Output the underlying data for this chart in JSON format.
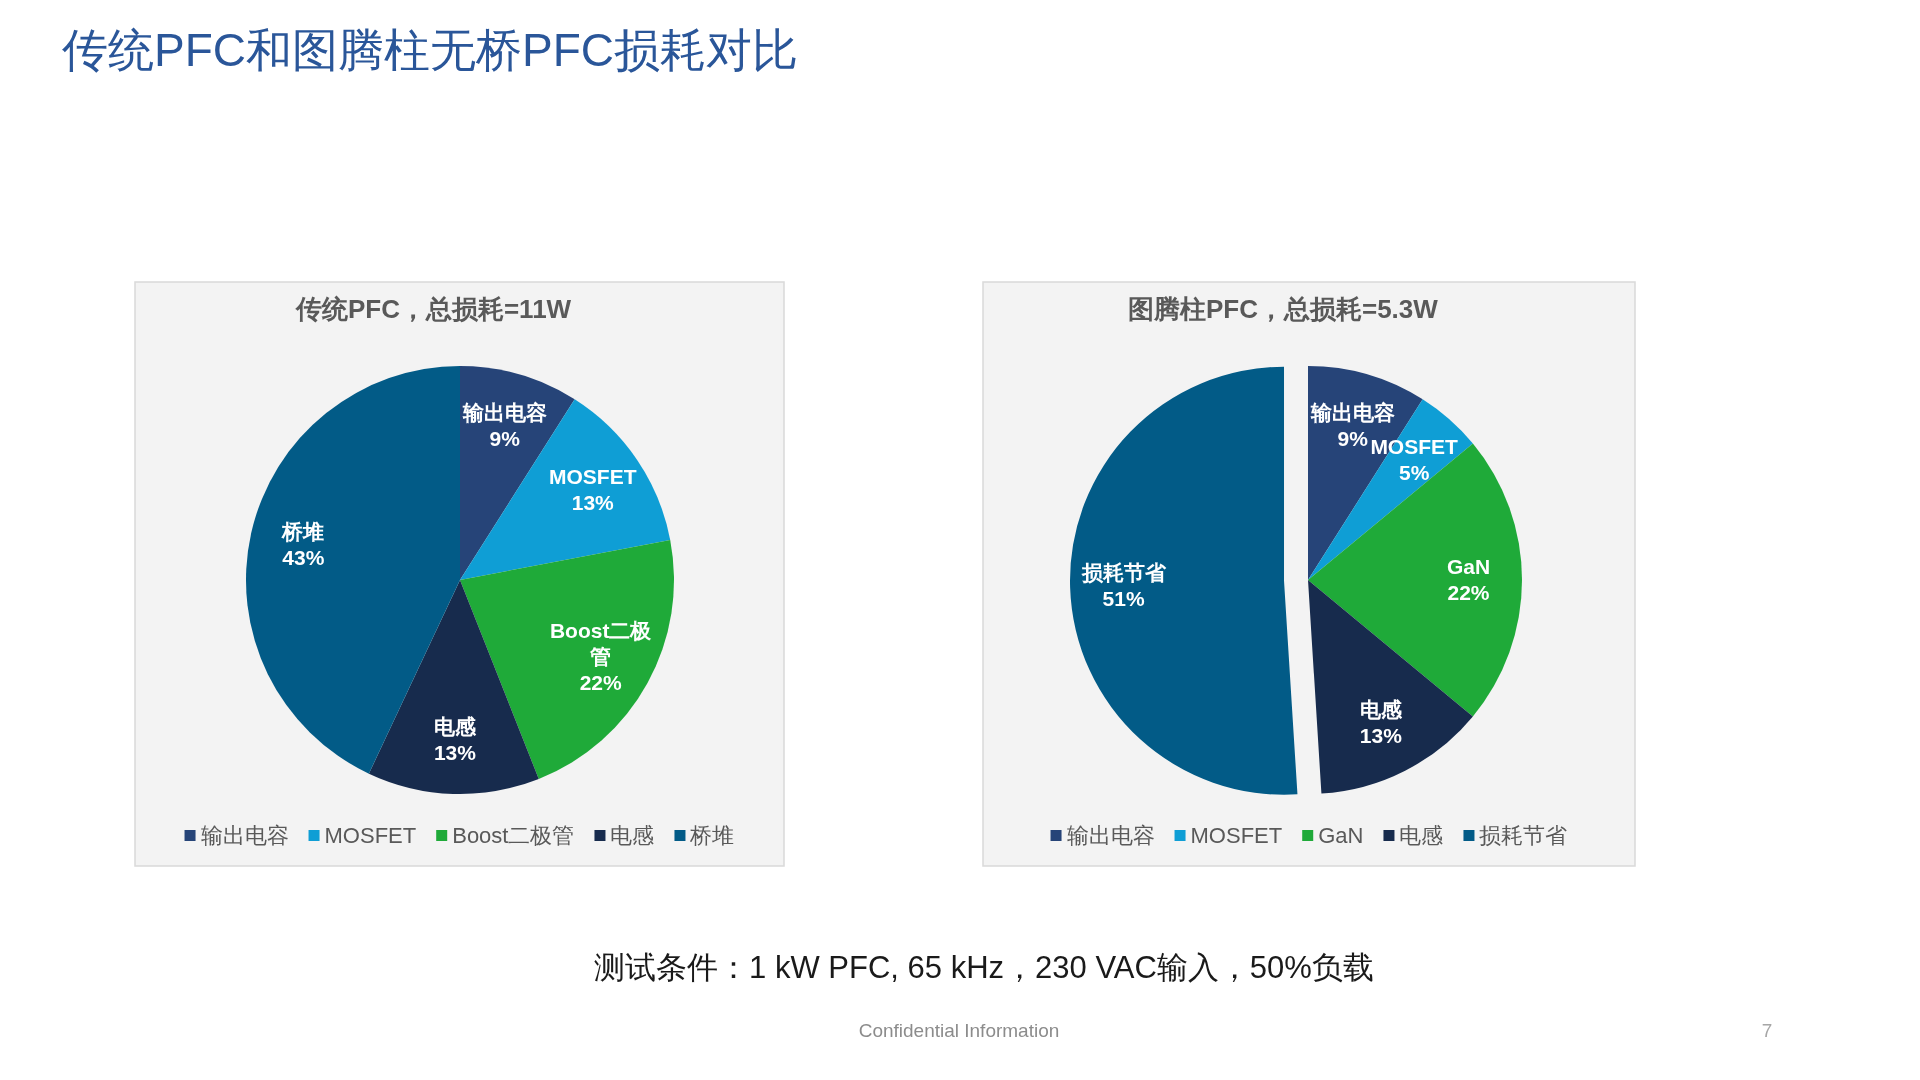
{
  "chart_data": [
    {
      "type": "other",
      "title": "传统PFC和图腾柱无桥PFC损耗对比"
    },
    {
      "type": "pie",
      "title": "传统PFC，总损耗=11W",
      "categories": [
        "输出电容",
        "MOSFET",
        "Boost二极管",
        "电感",
        "桥堆"
      ],
      "values": [
        9,
        13,
        22,
        13,
        43
      ],
      "value_labels": [
        "9%",
        "13%",
        "22%",
        "13%",
        "43%"
      ],
      "colors": [
        "#264478",
        "#0f9ed5",
        "#1faa39",
        "#172b4d",
        "#025b87"
      ],
      "legend": "bottom"
    },
    {
      "type": "pie",
      "title": "图腾柱PFC，总损耗=5.3W",
      "categories": [
        "输出电容",
        "MOSFET",
        "GaN",
        "电感",
        "损耗节省"
      ],
      "values": [
        9,
        5,
        22,
        13,
        51
      ],
      "value_labels": [
        "9%",
        "5%",
        "22%",
        "13%",
        "51%"
      ],
      "colors": [
        "#264478",
        "#0f9ed5",
        "#1faa39",
        "#172b4d",
        "#025b87"
      ],
      "legend": "bottom"
    },
    {
      "type": "other",
      "annotations": [
        "测试条件：1 kW PFC, 65 kHz，230 VAC输入，50%负载",
        "Confidential Information",
        "7"
      ]
    }
  ]
}
